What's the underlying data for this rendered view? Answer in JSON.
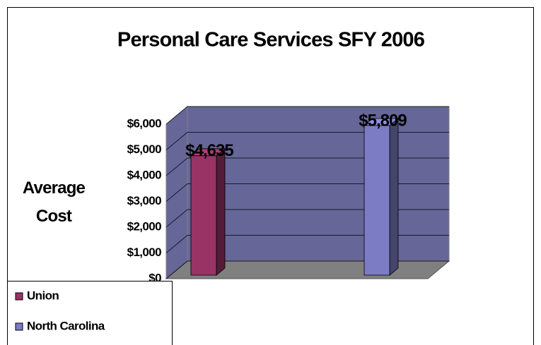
{
  "chart_data": {
    "type": "bar3d",
    "title": "Personal Care Services SFY 2006",
    "y_label": "Average Cost",
    "categories": [
      null
    ],
    "series": [
      {
        "name": "Union",
        "color": "#993366",
        "values": [
          4635
        ],
        "value_labels": [
          "$4,635"
        ]
      },
      {
        "name": "North Carolina",
        "color": "#7c7cc4",
        "values": [
          5809
        ],
        "value_labels": [
          "$5,809"
        ]
      }
    ],
    "ylim": [
      0,
      6000
    ],
    "yticks": [
      {
        "value": 0,
        "label": "$0"
      },
      {
        "value": 1000,
        "label": "$1,000"
      },
      {
        "value": 2000,
        "label": "$2,000"
      },
      {
        "value": 3000,
        "label": "$3,000"
      },
      {
        "value": 4000,
        "label": "$4,000"
      },
      {
        "value": 5000,
        "label": "$5,000"
      },
      {
        "value": 6000,
        "label": "$6,000"
      }
    ],
    "grid": true,
    "wall_color": "#666699",
    "floor_color": "#808080",
    "legend": "bottom-left"
  }
}
